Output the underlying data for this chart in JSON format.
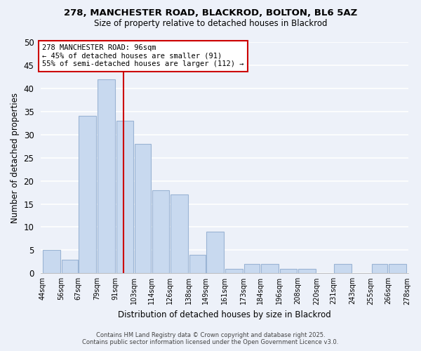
{
  "title": "278, MANCHESTER ROAD, BLACKROD, BOLTON, BL6 5AZ",
  "subtitle": "Size of property relative to detached houses in Blackrod",
  "xlabel": "Distribution of detached houses by size in Blackrod",
  "ylabel": "Number of detached properties",
  "bins": [
    44,
    56,
    67,
    79,
    91,
    103,
    114,
    126,
    138,
    149,
    161,
    173,
    184,
    196,
    208,
    220,
    231,
    243,
    255,
    266,
    278
  ],
  "counts": [
    5,
    3,
    34,
    42,
    33,
    28,
    18,
    17,
    4,
    9,
    1,
    2,
    2,
    1,
    1,
    0,
    2,
    0,
    2,
    2
  ],
  "tick_labels": [
    "44sqm",
    "56sqm",
    "67sqm",
    "79sqm",
    "91sqm",
    "103sqm",
    "114sqm",
    "126sqm",
    "138sqm",
    "149sqm",
    "161sqm",
    "173sqm",
    "184sqm",
    "196sqm",
    "208sqm",
    "220sqm",
    "231sqm",
    "243sqm",
    "255sqm",
    "266sqm",
    "278sqm"
  ],
  "bar_color": "#c8d9ef",
  "bar_edge_color": "#9ab4d4",
  "reference_line_x": 96,
  "reference_line_color": "#cc0000",
  "annotation_text": "278 MANCHESTER ROAD: 96sqm\n← 45% of detached houses are smaller (91)\n55% of semi-detached houses are larger (112) →",
  "annotation_box_color": "#ffffff",
  "annotation_box_edge": "#cc0000",
  "ylim": [
    0,
    50
  ],
  "yticks": [
    0,
    5,
    10,
    15,
    20,
    25,
    30,
    35,
    40,
    45,
    50
  ],
  "background_color": "#edf1f9",
  "grid_color": "#ffffff",
  "footer_line1": "Contains HM Land Registry data © Crown copyright and database right 2025.",
  "footer_line2": "Contains public sector information licensed under the Open Government Licence v3.0."
}
